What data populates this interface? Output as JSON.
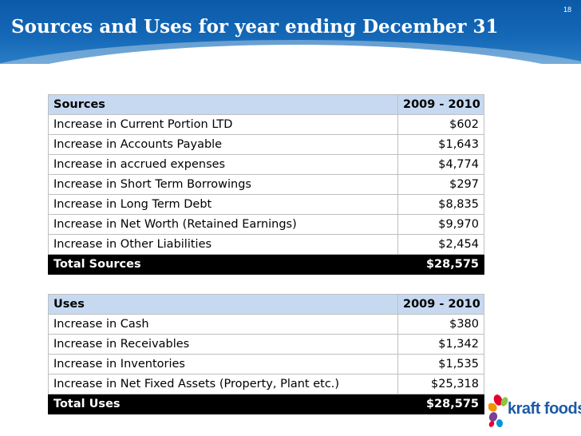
{
  "slide": {
    "title": "Sources and Uses for year ending December 31",
    "page_number": "18"
  },
  "sources": {
    "header": {
      "label": "Sources",
      "period": "2009 - 2010"
    },
    "rows": [
      {
        "label": "Increase in Current Portion LTD",
        "value": "$602"
      },
      {
        "label": "Increase in Accounts Payable",
        "value": "$1,643"
      },
      {
        "label": "Increase in accrued expenses",
        "value": "$4,774"
      },
      {
        "label": "Increase in Short Term Borrowings",
        "value": "$297"
      },
      {
        "label": "Increase in Long Term Debt",
        "value": "$8,835"
      },
      {
        "label": "Increase in Net Worth (Retained Earnings)",
        "value": "$9,970"
      },
      {
        "label": "Increase in Other Liabilities",
        "value": "$2,454"
      }
    ],
    "total": {
      "label": "Total Sources",
      "value": "$28,575"
    }
  },
  "uses": {
    "header": {
      "label": "Uses",
      "period": "2009 - 2010"
    },
    "rows": [
      {
        "label": "Increase in Cash",
        "value": "$380"
      },
      {
        "label": "Increase in Receivables",
        "value": "$1,342"
      },
      {
        "label": "Increase in Inventories",
        "value": "$1,535"
      },
      {
        "label": "Increase in Net Fixed Assets (Property, Plant etc.)",
        "value": "$25,318"
      }
    ],
    "total": {
      "label": "Total Uses",
      "value": "$28,575"
    }
  },
  "logo": {
    "text": "kraft foods",
    "icon": "kraft-flower-icon"
  },
  "colors": {
    "header_blue": "#1569b8",
    "table_header_fill": "#c6d9f1",
    "total_row_fill": "#000000",
    "logo_blue": "#1c5aa6"
  }
}
